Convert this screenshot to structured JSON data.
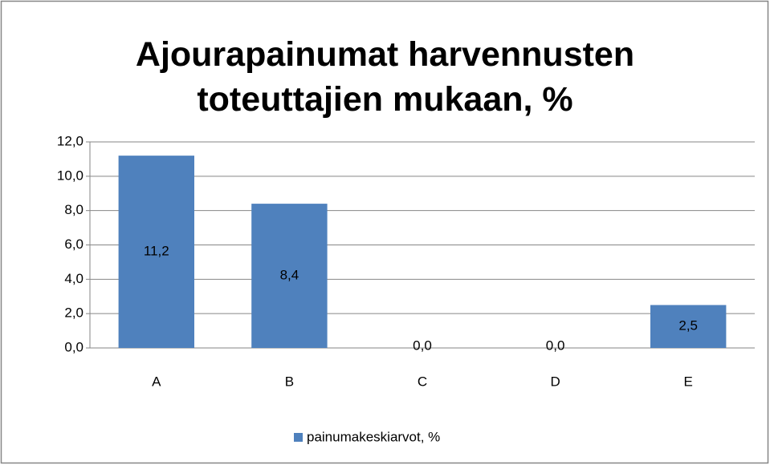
{
  "chart_data": {
    "type": "bar",
    "title": "Ajourapainumat harvennusten toteuttajien mukaan, %",
    "categories": [
      "A",
      "B",
      "C",
      "D",
      "E"
    ],
    "series": [
      {
        "name": "painumakeskiarvot, %",
        "color": "#4f81bd",
        "values": [
          11.2,
          8.4,
          0,
          0,
          2.5
        ],
        "value_labels": [
          "11,2",
          "8,4",
          "0,0",
          "0,0",
          "2,5"
        ]
      }
    ],
    "ylim": [
      0,
      12
    ],
    "yticks": [
      {
        "value": 0,
        "label": "0,0"
      },
      {
        "value": 2,
        "label": "2,0"
      },
      {
        "value": 4,
        "label": "4,0"
      },
      {
        "value": 6,
        "label": "6,0"
      },
      {
        "value": 8,
        "label": "8,0"
      },
      {
        "value": 10,
        "label": "10,0"
      },
      {
        "value": 12,
        "label": "12,0"
      }
    ],
    "grid": true,
    "legend": "bottom"
  }
}
